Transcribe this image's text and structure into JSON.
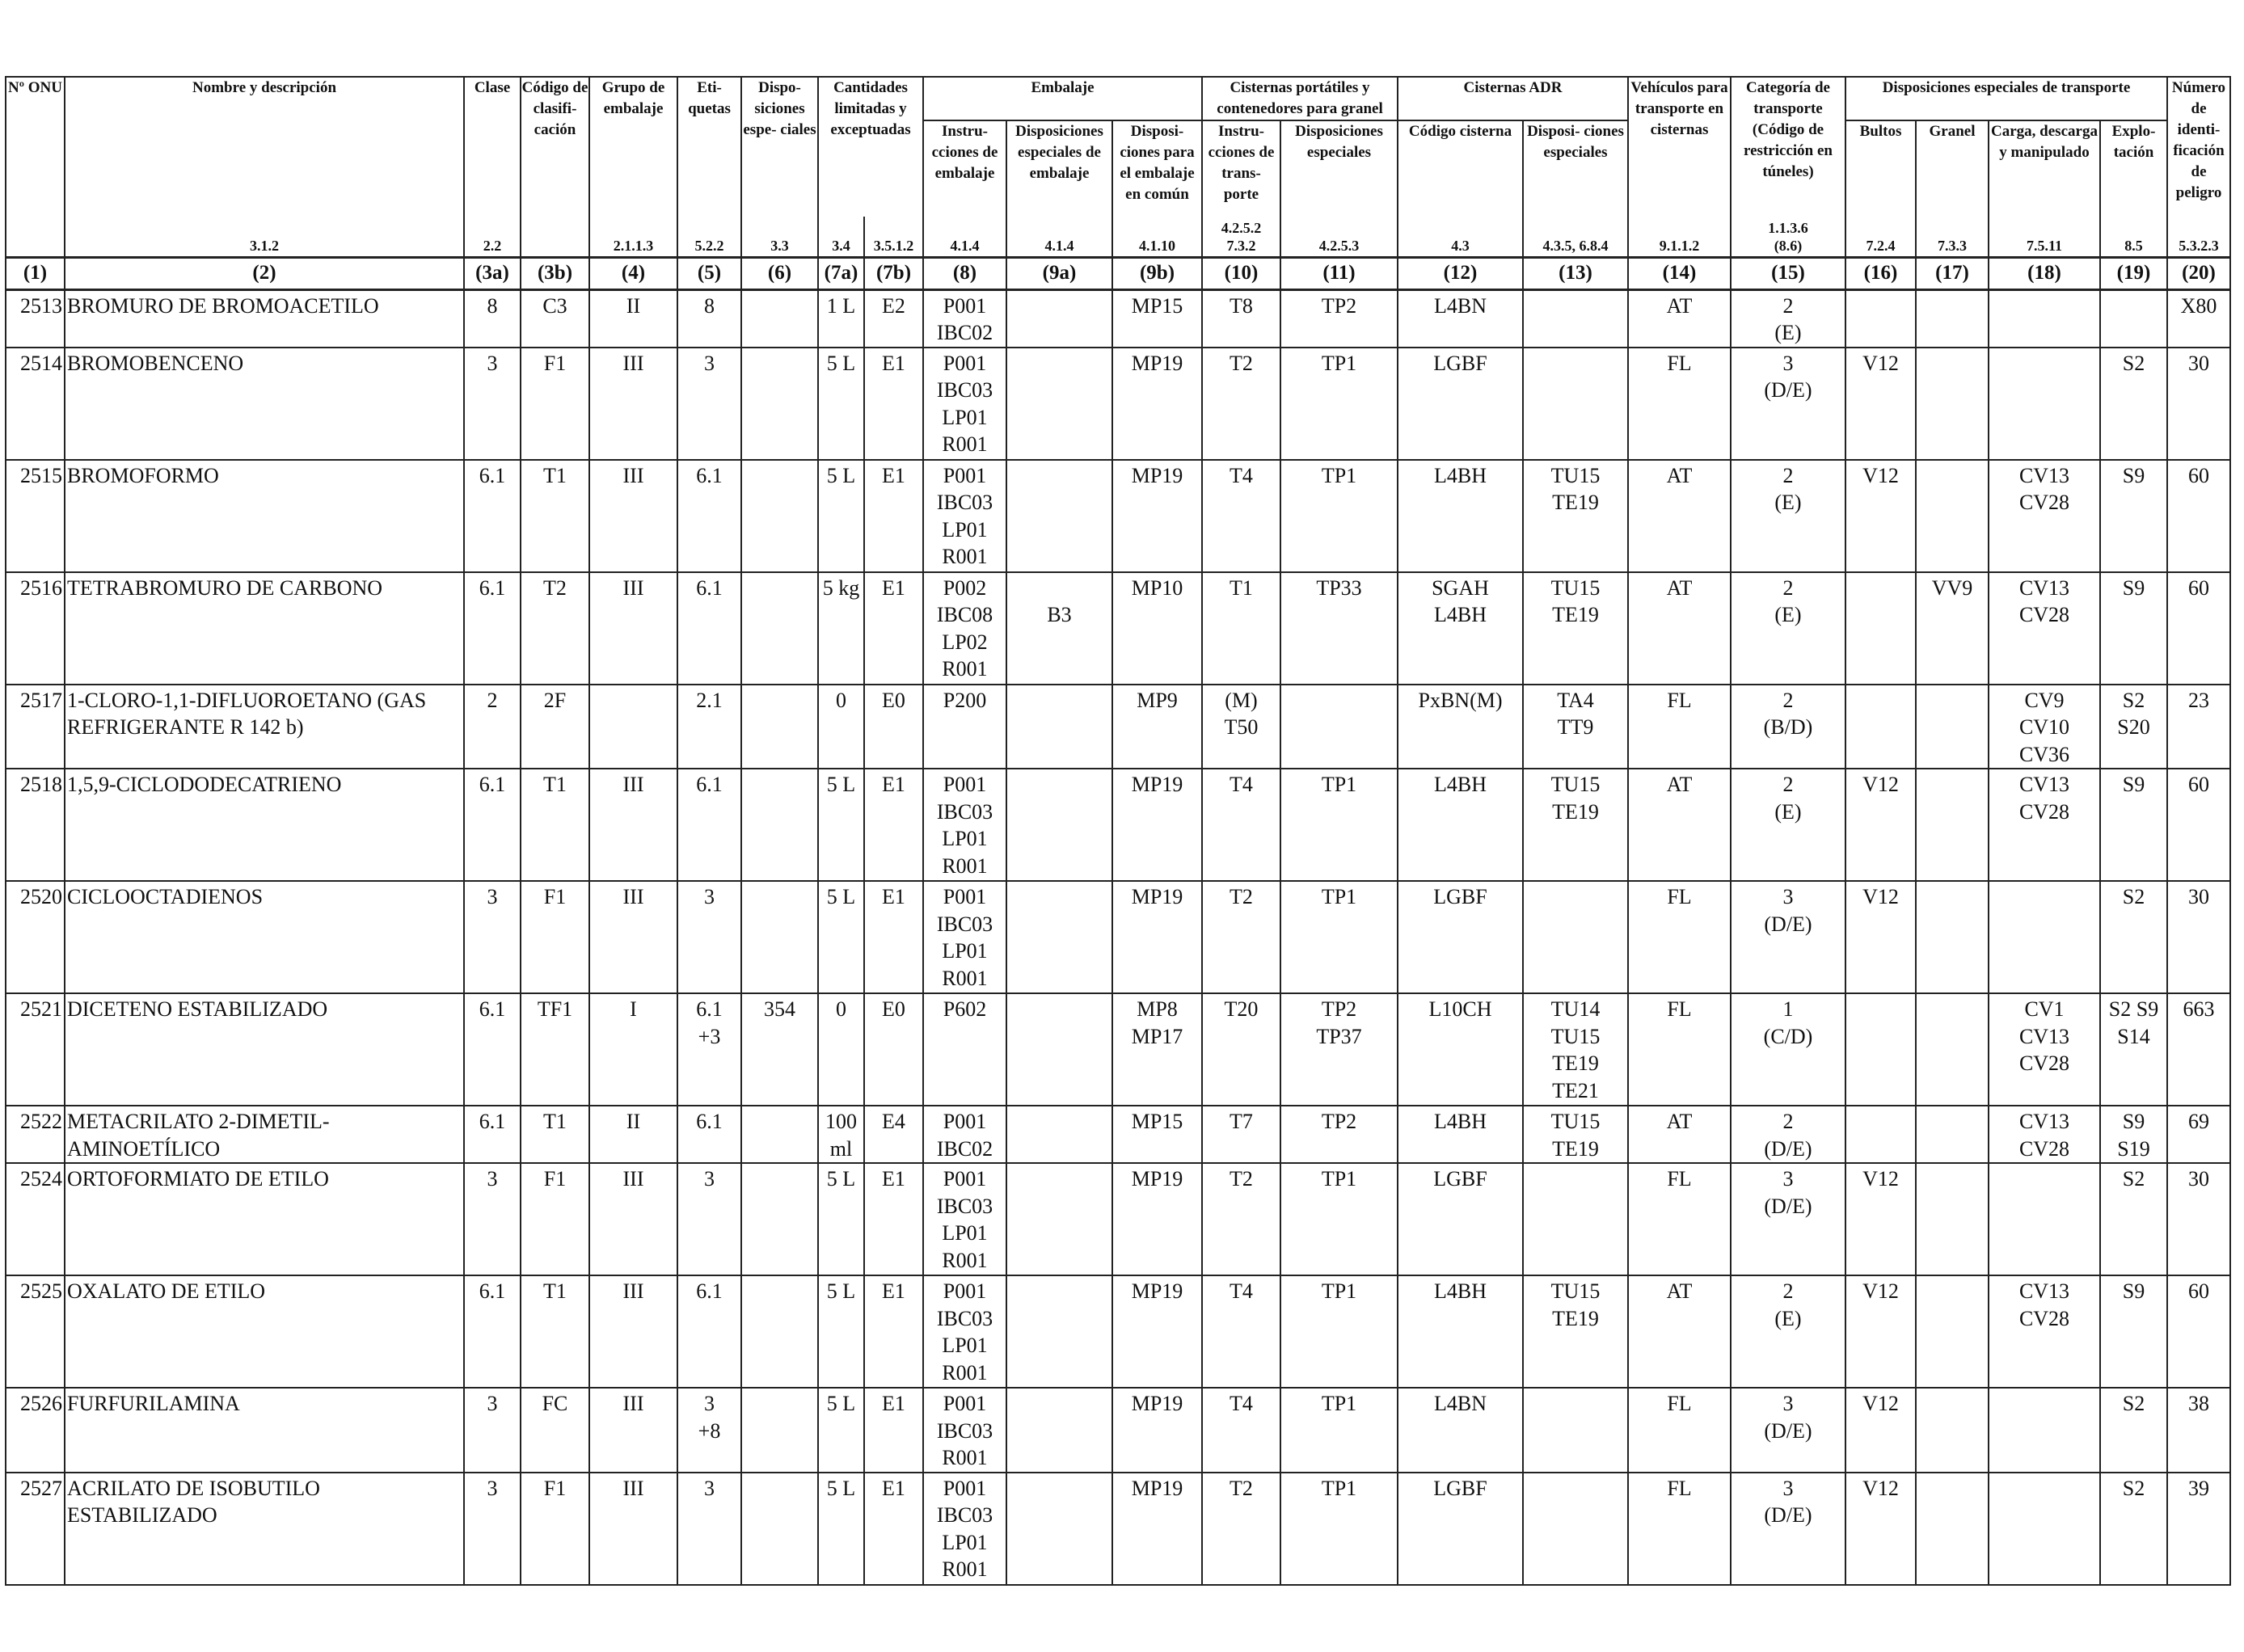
{
  "header": {
    "h1": "Nº ONU",
    "h2": "Nombre y descripción",
    "h3a": "Clase",
    "h3b": "Código de clasifi- cación",
    "h4": "Grupo de embalaje",
    "h5": "Eti- quetas",
    "h6": "Dispo- siciones espe- ciales",
    "h7": "Cantidades limitadas y exceptuadas",
    "h8group": "Embalaje",
    "h8": "Instru- cciones de embalaje",
    "h9a": "Disposiciones especiales de embalaje",
    "h9b": "Disposi- ciones para el embalaje en común",
    "h10group": "Cisternas portátiles y contenedores para granel",
    "h10": "Instru- cciones de trans- porte",
    "h11": "Disposiciones especiales",
    "h12group": "Cisternas ADR",
    "h12": "Código cisterna",
    "h13": "Disposi- ciones especiales",
    "h14": "Vehículos para transporte en cisternas",
    "h15": "Categoría de transporte (Código de restricción en túneles)",
    "h16group": "Disposiciones especiales de transporte",
    "h16": "Bultos",
    "h17": "Granel",
    "h18": "Carga, descarga y manipulado",
    "h19": "Explo- tación",
    "h20": "Número de identi- ficación de peligro"
  },
  "refs": {
    "r2": "3.1.2",
    "r3a": "2.2",
    "r3b": "",
    "r4": "2.1.1.3",
    "r5": "5.2.2",
    "r6": "3.3",
    "r7a": "3.4",
    "r7b": "3.5.1.2",
    "r8": "4.1.4",
    "r9a": "4.1.4",
    "r9b": "4.1.10",
    "r10": "4.2.5.2\n7.3.2",
    "r11": "4.2.5.3",
    "r12": "4.3",
    "r13": "4.3.5, 6.8.4",
    "r14": "9.1.1.2",
    "r15": "1.1.3.6\n(8.6)",
    "r16": "7.2.4",
    "r17": "7.3.3",
    "r18": "7.5.11",
    "r19": "8.5",
    "r20": "5.3.2.3"
  },
  "colnums": [
    "(1)",
    "(2)",
    "(3a)",
    "(3b)",
    "(4)",
    "(5)",
    "(6)",
    "(7a)",
    "(7b)",
    "(8)",
    "(9a)",
    "(9b)",
    "(10)",
    "(11)",
    "(12)",
    "(13)",
    "(14)",
    "(15)",
    "(16)",
    "(17)",
    "(18)",
    "(19)",
    "(20)"
  ],
  "rows": [
    {
      "un": "2513",
      "name": "BROMURO DE BROMOACETILO",
      "c3a": "8",
      "c3b": "C3",
      "c4": "II",
      "c5": "8",
      "c6": "",
      "c7a": "1 L",
      "c7b": "E2",
      "c8": "P001\nIBC02",
      "c9a": "",
      "c9b": "MP15",
      "c10": "T8",
      "c11": "TP2",
      "c12": "L4BN",
      "c13": "",
      "c14": "AT",
      "c15": "2\n(E)",
      "c16": "",
      "c17": "",
      "c18": "",
      "c19": "",
      "c20": "X80"
    },
    {
      "un": "2514",
      "name": "BROMOBENCENO",
      "c3a": "3",
      "c3b": "F1",
      "c4": "III",
      "c5": "3",
      "c6": "",
      "c7a": "5 L",
      "c7b": "E1",
      "c8": "P001\nIBC03\nLP01\nR001",
      "c9a": "",
      "c9b": "MP19",
      "c10": "T2",
      "c11": "TP1",
      "c12": "LGBF",
      "c13": "",
      "c14": "FL",
      "c15": "3\n(D/E)",
      "c16": "V12",
      "c17": "",
      "c18": "",
      "c19": "S2",
      "c20": "30"
    },
    {
      "un": "2515",
      "name": "BROMOFORMO",
      "c3a": "6.1",
      "c3b": "T1",
      "c4": "III",
      "c5": "6.1",
      "c6": "",
      "c7a": "5 L",
      "c7b": "E1",
      "c8": "P001\nIBC03\nLP01\nR001",
      "c9a": "",
      "c9b": "MP19",
      "c10": "T4",
      "c11": "TP1",
      "c12": "L4BH",
      "c13": "TU15\nTE19",
      "c14": "AT",
      "c15": "2\n(E)",
      "c16": "V12",
      "c17": "",
      "c18": "CV13\nCV28",
      "c19": "S9",
      "c20": "60"
    },
    {
      "un": "2516",
      "name": "TETRABROMURO DE CARBONO",
      "c3a": "6.1",
      "c3b": "T2",
      "c4": "III",
      "c5": "6.1",
      "c6": "",
      "c7a": "5 kg",
      "c7b": "E1",
      "c8": "P002\nIBC08\nLP02\nR001",
      "c9a": "\nB3",
      "c9b": "MP10",
      "c10": "T1",
      "c11": "TP33",
      "c12": "SGAH\nL4BH",
      "c13": "TU15\nTE19",
      "c14": "AT",
      "c15": "2\n(E)",
      "c16": "",
      "c17": "VV9",
      "c18": "CV13\nCV28",
      "c19": "S9",
      "c20": "60"
    },
    {
      "un": "2517",
      "name": "1-CLORO-1,1-DIFLUOROETANO (GAS REFRIGERANTE R 142 b)",
      "c3a": "2",
      "c3b": "2F",
      "c4": "",
      "c5": "2.1",
      "c6": "",
      "c7a": "0",
      "c7b": "E0",
      "c8": "P200",
      "c9a": "",
      "c9b": "MP9",
      "c10": "(M)\nT50",
      "c11": "",
      "c12": "PxBN(M)",
      "c13": "TA4\nTT9",
      "c14": "FL",
      "c15": "2\n(B/D)",
      "c16": "",
      "c17": "",
      "c18": "CV9\nCV10\nCV36",
      "c19": "S2\nS20",
      "c20": "23"
    },
    {
      "un": "2518",
      "name": "1,5,9-CICLODODECATRIENO",
      "c3a": "6.1",
      "c3b": "T1",
      "c4": "III",
      "c5": "6.1",
      "c6": "",
      "c7a": "5 L",
      "c7b": "E1",
      "c8": "P001\nIBC03\nLP01\nR001",
      "c9a": "",
      "c9b": "MP19",
      "c10": "T4",
      "c11": "TP1",
      "c12": "L4BH",
      "c13": "TU15\nTE19",
      "c14": "AT",
      "c15": "2\n(E)",
      "c16": "V12",
      "c17": "",
      "c18": "CV13\nCV28",
      "c19": "S9",
      "c20": "60"
    },
    {
      "un": "2520",
      "name": "CICLOOCTADIENOS",
      "c3a": "3",
      "c3b": "F1",
      "c4": "III",
      "c5": "3",
      "c6": "",
      "c7a": "5 L",
      "c7b": "E1",
      "c8": "P001\nIBC03\nLP01\nR001",
      "c9a": "",
      "c9b": "MP19",
      "c10": "T2",
      "c11": "TP1",
      "c12": "LGBF",
      "c13": "",
      "c14": "FL",
      "c15": "3\n(D/E)",
      "c16": "V12",
      "c17": "",
      "c18": "",
      "c19": "S2",
      "c20": "30"
    },
    {
      "un": "2521",
      "name": "DICETENO ESTABILIZADO",
      "c3a": "6.1",
      "c3b": "TF1",
      "c4": "I",
      "c5": "6.1\n+3",
      "c6": "354",
      "c7a": "0",
      "c7b": "E0",
      "c8": "P602",
      "c9a": "",
      "c9b": "MP8\nMP17",
      "c10": "T20",
      "c11": "TP2\nTP37",
      "c12": "L10CH",
      "c13": "TU14\nTU15\nTE19\nTE21",
      "c14": "FL",
      "c15": "1\n(C/D)",
      "c16": "",
      "c17": "",
      "c18": "CV1\nCV13\nCV28",
      "c19": "S2 S9\nS14",
      "c20": "663"
    },
    {
      "un": "2522",
      "name": "METACRILATO 2-DIMETIL-AMINOETÍLICO",
      "c3a": "6.1",
      "c3b": "T1",
      "c4": "II",
      "c5": "6.1",
      "c6": "",
      "c7a": "100\nml",
      "c7b": "E4",
      "c8": "P001\nIBC02",
      "c9a": "",
      "c9b": "MP15",
      "c10": "T7",
      "c11": "TP2",
      "c12": "L4BH",
      "c13": "TU15\nTE19",
      "c14": "AT",
      "c15": "2\n(D/E)",
      "c16": "",
      "c17": "",
      "c18": "CV13\nCV28",
      "c19": "S9\nS19",
      "c20": "69"
    },
    {
      "un": "2524",
      "name": "ORTOFORMIATO DE ETILO",
      "c3a": "3",
      "c3b": "F1",
      "c4": "III",
      "c5": "3",
      "c6": "",
      "c7a": "5 L",
      "c7b": "E1",
      "c8": "P001\nIBC03\nLP01\nR001",
      "c9a": "",
      "c9b": "MP19",
      "c10": "T2",
      "c11": "TP1",
      "c12": "LGBF",
      "c13": "",
      "c14": "FL",
      "c15": "3\n(D/E)",
      "c16": "V12",
      "c17": "",
      "c18": "",
      "c19": "S2",
      "c20": "30"
    },
    {
      "un": "2525",
      "name": "OXALATO DE ETILO",
      "c3a": "6.1",
      "c3b": "T1",
      "c4": "III",
      "c5": "6.1",
      "c6": "",
      "c7a": "5 L",
      "c7b": "E1",
      "c8": "P001\nIBC03\nLP01\nR001",
      "c9a": "",
      "c9b": "MP19",
      "c10": "T4",
      "c11": "TP1",
      "c12": "L4BH",
      "c13": "TU15\nTE19",
      "c14": "AT",
      "c15": "2\n(E)",
      "c16": "V12",
      "c17": "",
      "c18": "CV13\nCV28",
      "c19": "S9",
      "c20": "60"
    },
    {
      "un": "2526",
      "name": "FURFURILAMINA",
      "c3a": "3",
      "c3b": "FC",
      "c4": "III",
      "c5": "3\n+8",
      "c6": "",
      "c7a": "5 L",
      "c7b": "E1",
      "c8": "P001\nIBC03\nR001",
      "c9a": "",
      "c9b": "MP19",
      "c10": "T4",
      "c11": "TP1",
      "c12": "L4BN",
      "c13": "",
      "c14": "FL",
      "c15": "3\n(D/E)",
      "c16": "V12",
      "c17": "",
      "c18": "",
      "c19": "S2",
      "c20": "38"
    },
    {
      "un": "2527",
      "name": "ACRILATO DE ISOBUTILO ESTABILIZADO",
      "c3a": "3",
      "c3b": "F1",
      "c4": "III",
      "c5": "3",
      "c6": "",
      "c7a": "5 L",
      "c7b": "E1",
      "c8": "P001\nIBC03\nLP01\nR001",
      "c9a": "",
      "c9b": "MP19",
      "c10": "T2",
      "c11": "TP1",
      "c12": "LGBF",
      "c13": "",
      "c14": "FL",
      "c15": "3\n(D/E)",
      "c16": "V12",
      "c17": "",
      "c18": "",
      "c19": "S2",
      "c20": "39"
    }
  ]
}
